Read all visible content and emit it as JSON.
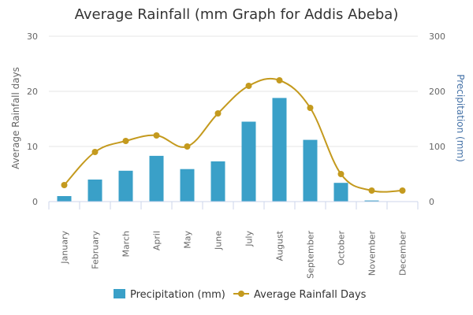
{
  "chart_data": {
    "type": "bar",
    "title": "Average Rainfall (mm Graph for Addis Abeba)",
    "categories": [
      "January",
      "February",
      "March",
      "April",
      "May",
      "June",
      "July",
      "August",
      "September",
      "October",
      "November",
      "December"
    ],
    "series": [
      {
        "name": "Precipitation (mm)",
        "type": "bar",
        "axis": "right",
        "color": "#3aa0c8",
        "values": [
          10,
          40,
          56,
          83,
          59,
          73,
          145,
          188,
          112,
          34,
          2,
          0
        ]
      },
      {
        "name": "Average Rainfall Days",
        "type": "line",
        "axis": "left",
        "color": "#c49a1e",
        "values": [
          3,
          9,
          11,
          12,
          10,
          16,
          21,
          22,
          17,
          5,
          2,
          2
        ]
      }
    ],
    "y_left": {
      "label": "Average Rainfall days",
      "range": [
        0,
        30
      ],
      "ticks": [
        "0",
        "10",
        "20",
        "30"
      ]
    },
    "y_right": {
      "label": "Precipitation (mm)",
      "range": [
        0,
        300
      ],
      "ticks": [
        "0",
        "100",
        "200",
        "300"
      ]
    },
    "grid": true,
    "legend": "bottom"
  }
}
